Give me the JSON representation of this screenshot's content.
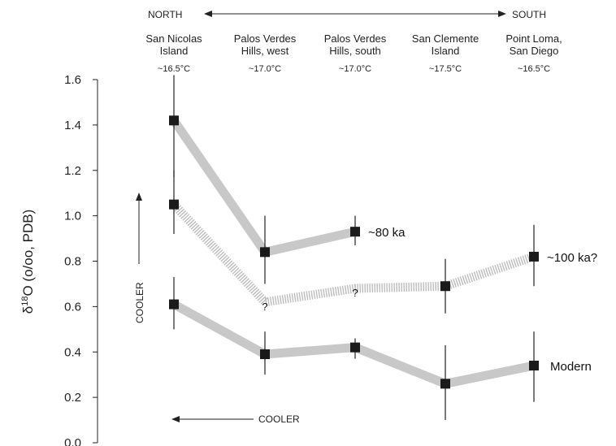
{
  "chart_data": {
    "type": "line",
    "direction": {
      "north": "NORTH",
      "south": "SOUTH"
    },
    "categories": [
      {
        "lines": [
          "San Nicolas",
          "Island"
        ],
        "temp": "~16.5°C"
      },
      {
        "lines": [
          "Palos Verdes",
          "Hills, west"
        ],
        "temp": "~17.0°C"
      },
      {
        "lines": [
          "Palos Verdes",
          "Hills, south"
        ],
        "temp": "~17.0°C"
      },
      {
        "lines": [
          "San Clemente",
          "Island"
        ],
        "temp": "~17.5°C"
      },
      {
        "lines": [
          "Point Loma,",
          "San Diego"
        ],
        "temp": "~16.5°C"
      }
    ],
    "ylabel_prefix": "δ",
    "ylabel_sup": "18",
    "ylabel_rest": "O (o/oo, PDB)",
    "ylim": [
      0.0,
      1.6
    ],
    "yticks": [
      "0.0",
      "0.2",
      "0.4",
      "0.6",
      "0.8",
      "1.0",
      "1.2",
      "1.4",
      "1.6"
    ],
    "series": [
      {
        "name": "~80 ka",
        "style": "solid",
        "points": [
          {
            "x": 0,
            "y": 1.42,
            "err": [
              1.17,
              1.62
            ]
          },
          {
            "x": 1,
            "y": 0.84,
            "err": [
              0.7,
              1.0
            ]
          },
          {
            "x": 2,
            "y": 0.93,
            "err": [
              0.87,
              1.0
            ]
          }
        ]
      },
      {
        "name": "~100 ka?",
        "style": "hatched",
        "points": [
          {
            "x": 0,
            "y": 1.05,
            "err": [
              0.92,
              1.2
            ],
            "marker": true
          },
          {
            "x": 1,
            "y": 0.62,
            "marker": false,
            "label": "?"
          },
          {
            "x": 2,
            "y": 0.68,
            "marker": false,
            "label": "?"
          },
          {
            "x": 3,
            "y": 0.69,
            "err": [
              0.57,
              0.81
            ],
            "marker": true
          },
          {
            "x": 4,
            "y": 0.82,
            "err": [
              0.69,
              0.96
            ],
            "marker": true
          }
        ]
      },
      {
        "name": "Modern",
        "style": "solid",
        "points": [
          {
            "x": 0,
            "y": 0.61,
            "err": [
              0.5,
              0.73
            ]
          },
          {
            "x": 1,
            "y": 0.39,
            "err": [
              0.3,
              0.49
            ]
          },
          {
            "x": 2,
            "y": 0.42,
            "err": [
              0.37,
              0.46
            ]
          },
          {
            "x": 3,
            "y": 0.26,
            "err": [
              0.1,
              0.43
            ]
          },
          {
            "x": 4,
            "y": 0.34,
            "err": [
              0.18,
              0.49
            ]
          }
        ]
      }
    ],
    "annotations": {
      "cooler_vertical": "COOLER",
      "cooler_horizontal": "COOLER"
    },
    "colors": {
      "line": "#c8c8c8",
      "hatch": "#bdbdbd",
      "marker": "#1a1a1a",
      "errorbar": "#222222"
    }
  }
}
